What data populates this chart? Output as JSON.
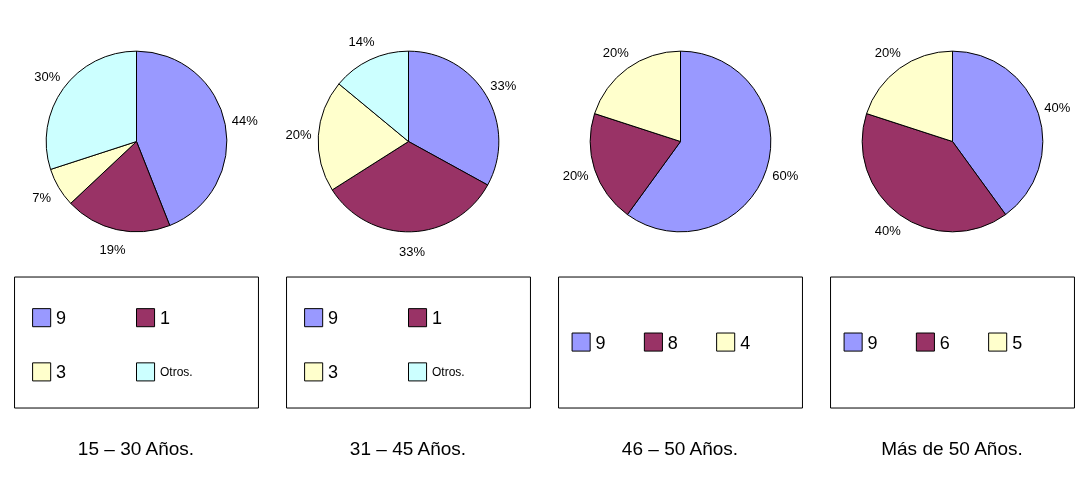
{
  "chart_data": [
    {
      "type": "pie",
      "title": "15 – 30 Años.",
      "categories": [
        "9",
        "1",
        "3",
        "Otros."
      ],
      "values": [
        44,
        19,
        7,
        30
      ],
      "value_labels": [
        "44%",
        "19%",
        "7%",
        "30%"
      ],
      "colors": [
        "#9999ff",
        "#993366",
        "#ffffcc",
        "#ccffff"
      ],
      "legend": "bottom"
    },
    {
      "type": "pie",
      "title": "31 – 45 Años.",
      "categories": [
        "9",
        "1",
        "3",
        "Otros."
      ],
      "values": [
        33,
        33,
        20,
        14
      ],
      "value_labels": [
        "33%",
        "33%",
        "20%",
        "14%"
      ],
      "colors": [
        "#9999ff",
        "#993366",
        "#ffffcc",
        "#ccffff"
      ],
      "legend": "bottom"
    },
    {
      "type": "pie",
      "title": "46 – 50 Años.",
      "categories": [
        "9",
        "8",
        "4"
      ],
      "values": [
        60,
        20,
        20
      ],
      "value_labels": [
        "60%",
        "20%",
        "20%"
      ],
      "colors": [
        "#9999ff",
        "#993366",
        "#ffffcc"
      ],
      "legend": "bottom"
    },
    {
      "type": "pie",
      "title": "Más de 50 Años.",
      "categories": [
        "9",
        "6",
        "5"
      ],
      "values": [
        40,
        40,
        20
      ],
      "value_labels": [
        "40%",
        "40%",
        "20%"
      ],
      "colors": [
        "#9999ff",
        "#993366",
        "#ffffcc"
      ],
      "legend": "bottom"
    }
  ]
}
